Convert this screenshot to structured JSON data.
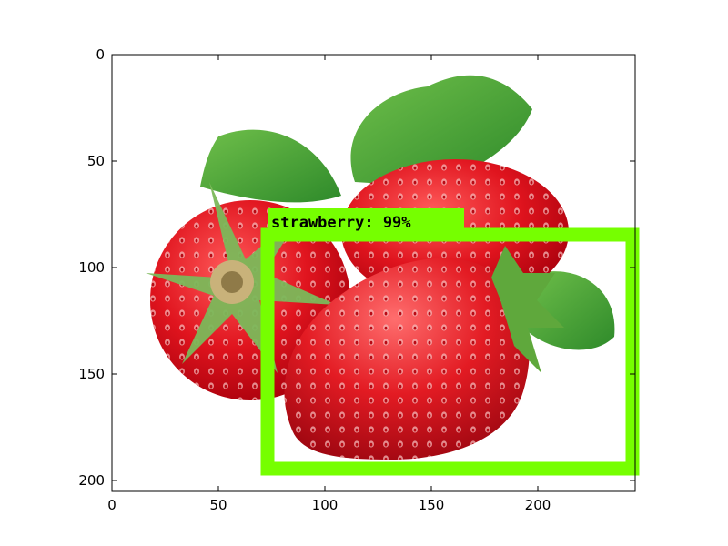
{
  "image": {
    "subject": "strawberries",
    "x_ticks": [
      "0",
      "50",
      "100",
      "150",
      "200"
    ],
    "y_ticks": [
      "0",
      "50",
      "100",
      "150",
      "200"
    ],
    "xlim": [
      0,
      245
    ],
    "ylim": [
      205,
      0
    ]
  },
  "detection": {
    "label": "strawberry: 99%",
    "box_color": "#76ff00",
    "box_data": {
      "xmin": 72,
      "ymin": 83,
      "xmax": 245,
      "ymax": 195
    }
  }
}
